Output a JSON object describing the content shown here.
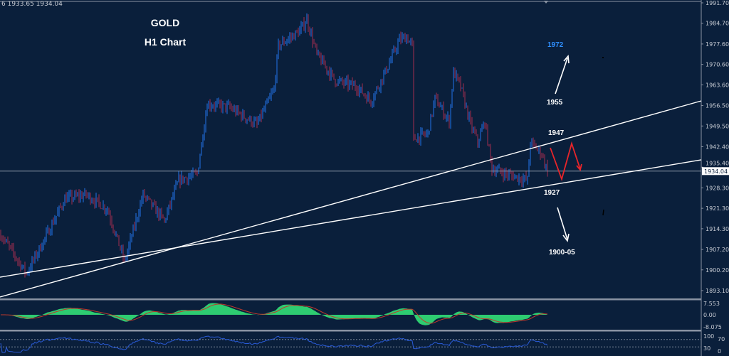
{
  "header": {
    "ohlc_readout": "6 1933.65 1934.04"
  },
  "titles": {
    "symbol": "GOLD",
    "timeframe": "H1 Chart"
  },
  "annotations": {
    "target_up": "1972",
    "level_1955": "1955",
    "level_1947": "1947",
    "level_1927": "1927",
    "target_down": "1900-05"
  },
  "colors": {
    "background": "#0a1f3b",
    "bull_candle": "#1f66cc",
    "bear_candle": "#8a2b4c",
    "trendline": "#ffffff",
    "forecast_path": "#e8252a",
    "target_up_label": "#2f8fff",
    "macd_histogram": "#2ecc71",
    "macd_signal": "#c0392b",
    "rsi_line": "#2a5bd7"
  },
  "chart_data": {
    "type": "candlestick",
    "title": "GOLD",
    "subtitle": "H1 Chart",
    "ylim": [
      1889.5,
      1995.0
    ],
    "price_ticks": [
      "1991.70",
      "1984.70",
      "1977.60",
      "1970.60",
      "1963.60",
      "1956.50",
      "1949.50",
      "1942.40",
      "1935.40",
      "1928.30",
      "1921.30",
      "1914.30",
      "1907.20",
      "1900.20",
      "1893.10"
    ],
    "current_price": "1934.04",
    "price_path": [
      [
        0,
        1912.3
      ],
      [
        10,
        1905
      ],
      [
        18,
        1899
      ],
      [
        30,
        1910
      ],
      [
        45,
        1924.5
      ],
      [
        60,
        1926
      ],
      [
        75,
        1921
      ],
      [
        87,
        1903
      ],
      [
        100,
        1926
      ],
      [
        115,
        1917
      ],
      [
        125,
        1931
      ],
      [
        138,
        1933
      ],
      [
        145,
        1957
      ],
      [
        160,
        1956
      ],
      [
        180,
        1950
      ],
      [
        192,
        1962
      ],
      [
        195,
        1977
      ],
      [
        210,
        1982
      ],
      [
        215,
        1986
      ],
      [
        222,
        1974
      ],
      [
        235,
        1965
      ],
      [
        250,
        1963
      ],
      [
        260,
        1958
      ],
      [
        272,
        1970
      ],
      [
        280,
        1979
      ],
      [
        285,
        1980
      ],
      [
        289,
        1977
      ],
      [
        290,
        1945
      ],
      [
        300,
        1947
      ],
      [
        305,
        1959
      ],
      [
        315,
        1951
      ],
      [
        318,
        1968
      ],
      [
        323,
        1963
      ],
      [
        330,
        1950
      ],
      [
        335,
        1944
      ],
      [
        340,
        1951
      ],
      [
        345,
        1935
      ],
      [
        355,
        1933
      ],
      [
        370,
        1931
      ],
      [
        372,
        1944
      ],
      [
        380,
        1940
      ],
      [
        384,
        1934
      ]
    ],
    "trendlines": [
      {
        "from": 1890.9,
        "to": 1958.1
      },
      {
        "from": 1897.7,
        "to": 1937.9
      }
    ],
    "macd_ticks": [
      "7.553",
      "0.00",
      "-8.075"
    ],
    "rsi_ticks": [
      "100",
      "70",
      "30",
      "0"
    ],
    "grid": false
  }
}
